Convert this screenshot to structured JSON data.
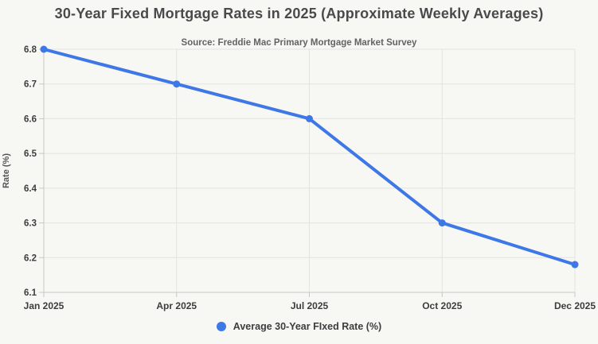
{
  "title": "30-Year Fixed Mortgage Rates in 2025 (Approximate Weekly Averages)",
  "subtitle": "Source: Freddie Mac Primary Mortgage Market Survey",
  "legend": {
    "label": "Average 30-Year FIxed Rate (%)",
    "marker": "circle-icon",
    "marker_color": "#3d78e6",
    "position": "bottom"
  },
  "colors": {
    "background": "#f7f7f4",
    "accent_blue": "#3d78e6",
    "gridline": "#e3e3e0",
    "axis": "#c7c7c4",
    "tick_text": "#3d3d3d",
    "title_text": "#4a4a4a",
    "subtitle_text": "#636363"
  },
  "chart_data": {
    "type": "line",
    "title": "30-Year Fixed Mortgage Rates in 2025 (Approximate Weekly Averages)",
    "subtitle": "Source: Freddie Mac Primary Mortgage Market Survey",
    "categories": [
      "Jan 2025",
      "Apr 2025",
      "Jul 2025",
      "Oct 2025",
      "Dec 2025"
    ],
    "series": [
      {
        "name": "Average 30-Year FIxed Rate (%)",
        "values": [
          6.8,
          6.7,
          6.6,
          6.3,
          6.18
        ],
        "color": "#3d78e6"
      }
    ],
    "xlabel": "",
    "ylabel": "Rate (%)",
    "ylim": [
      6.1,
      6.8
    ],
    "yticks": [
      6.1,
      6.2,
      6.3,
      6.4,
      6.5,
      6.6,
      6.7,
      6.8
    ],
    "grid": true,
    "legend_position": "bottom"
  }
}
